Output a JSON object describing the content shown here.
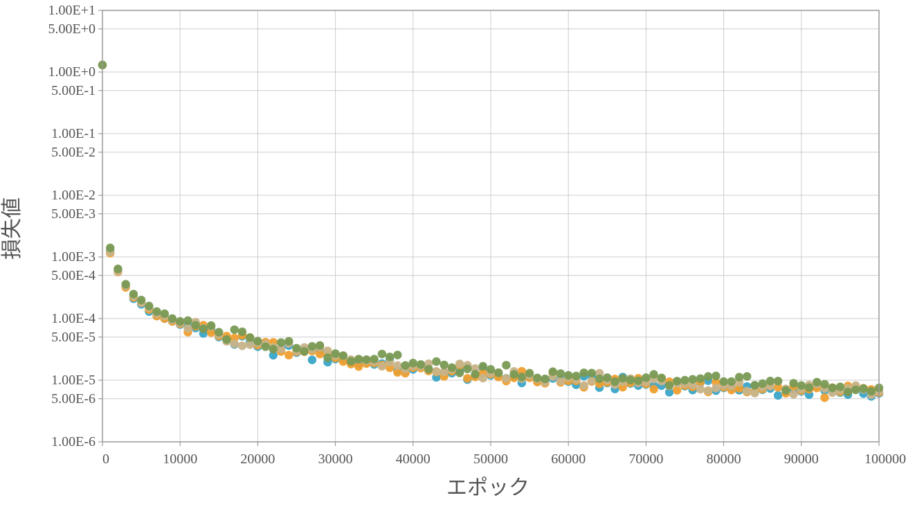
{
  "chart_data": {
    "type": "scatter",
    "xlabel": "エポック",
    "ylabel": "損失値",
    "xlim": [
      0,
      100000
    ],
    "ylim": [
      1e-06,
      10
    ],
    "y_scale": "log",
    "grid": true,
    "x_ticks": [
      0,
      10000,
      20000,
      30000,
      40000,
      50000,
      60000,
      70000,
      80000,
      90000,
      100000
    ],
    "x_tick_labels": [
      "0",
      "10000",
      "20000",
      "30000",
      "40000",
      "50000",
      "60000",
      "70000",
      "80000",
      "90000",
      "100000"
    ],
    "y_ticks": [
      10,
      5,
      1,
      0.5,
      0.1,
      0.05,
      0.01,
      0.005,
      0.001,
      0.0005,
      0.0001,
      5e-05,
      1e-05,
      5e-06,
      1e-06
    ],
    "y_tick_labels": [
      "1.00E+1",
      "5.00E+0",
      "1.00E+0",
      "5.00E-1",
      "1.00E-1",
      "5.00E-2",
      "1.00E-2",
      "5.00E-3",
      "1.00E-3",
      "5.00E-4",
      "1.00E-4",
      "5.00E-5",
      "1.00E-5",
      "5.00E-6",
      "1.00E-6"
    ],
    "x": [
      0,
      1000,
      2000,
      3000,
      4000,
      5000,
      6000,
      7000,
      8000,
      9000,
      10000,
      15000,
      20000,
      25000,
      30000,
      35000,
      40000,
      45000,
      50000,
      55000,
      60000,
      65000,
      70000,
      75000,
      80000,
      85000,
      90000,
      95000,
      100000
    ],
    "series": [
      {
        "color": "#3aa6c9",
        "values": [
          1.3,
          0.00125,
          0.0006,
          0.00033,
          0.00021,
          0.00017,
          0.00013,
          0.00011,
          0.0001,
          9e-05,
          8e-05,
          5e-05,
          3.5e-05,
          2.8e-05,
          2.2e-05,
          1.8e-05,
          1.5e-05,
          1.3e-05,
          1.2e-05,
          1.1e-05,
          9.5e-06,
          9e-06,
          8.5e-06,
          8e-06,
          7.5e-06,
          7e-06,
          6.6e-06,
          6.3e-06,
          6.1e-06
        ]
      },
      {
        "color": "#f0a030",
        "values": [
          1.3,
          0.00115,
          0.00057,
          0.00032,
          0.00022,
          0.00018,
          0.00014,
          0.00011,
          0.0001,
          9e-05,
          8.2e-05,
          5.2e-05,
          3.7e-05,
          2.9e-05,
          2.3e-05,
          1.9e-05,
          1.6e-05,
          1.4e-05,
          1.25e-05,
          1.1e-05,
          9.8e-06,
          9.2e-06,
          8.7e-06,
          8.2e-06,
          7.7e-06,
          7.2e-06,
          6.8e-06,
          6.5e-06,
          6.3e-06
        ]
      },
      {
        "color": "#c9b48a",
        "values": [
          1.3,
          0.0012,
          0.00058,
          0.00034,
          0.00023,
          0.00018,
          0.00015,
          0.00012,
          0.00011,
          9.5e-05,
          8.5e-05,
          5.5e-05,
          4e-05,
          3e-05,
          2.5e-05,
          2e-05,
          1.7e-05,
          1.5e-05,
          1.3e-05,
          1.2e-05,
          1.1e-05,
          1e-05,
          9.4e-06,
          8.8e-06,
          8.2e-06,
          7.7e-06,
          7.2e-06,
          6.9e-06,
          6.6e-06
        ]
      },
      {
        "color": "#7a9a55",
        "values": [
          1.3,
          0.0014,
          0.00064,
          0.00036,
          0.00025,
          0.0002,
          0.00016,
          0.00013,
          0.00012,
          0.0001,
          9e-05,
          6e-05,
          4.3e-05,
          3.3e-05,
          2.7e-05,
          2.2e-05,
          1.9e-05,
          1.6e-05,
          1.5e-05,
          1.3e-05,
          1.2e-05,
          1.1e-05,
          1.1e-05,
          1e-05,
          9.5e-06,
          8.8e-06,
          8.2e-06,
          7.8e-06,
          7.5e-06
        ]
      }
    ]
  }
}
